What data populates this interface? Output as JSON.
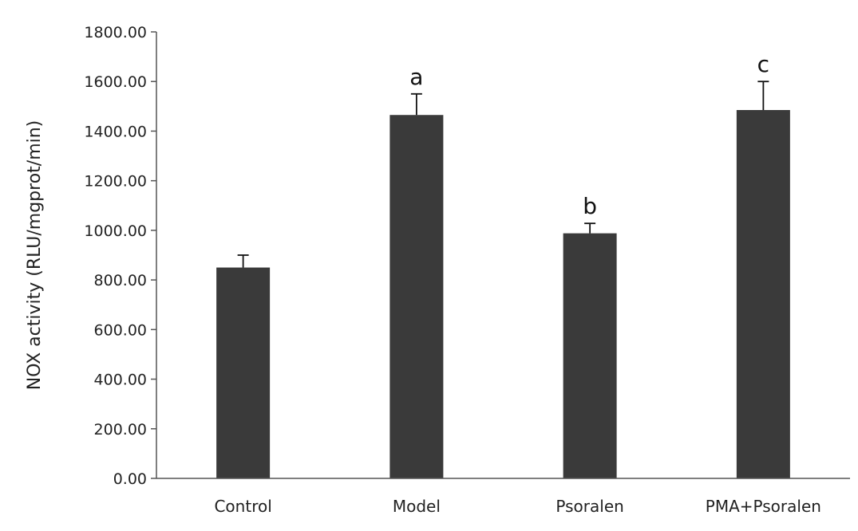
{
  "chart_data": {
    "type": "bar",
    "title": "",
    "xlabel": "",
    "ylabel": "NOX activity (RLU/mgprot/min)",
    "ylim": [
      0,
      1800
    ],
    "yticks": [
      "0.00",
      "200.00",
      "400.00",
      "600.00",
      "800.00",
      "1000.00",
      "1200.00",
      "1400.00",
      "1600.00",
      "1800.00"
    ],
    "ytick_values": [
      0,
      200,
      400,
      600,
      800,
      1000,
      1200,
      1400,
      1600,
      1800
    ],
    "categories": [
      "Control",
      "Model",
      "Psoralen",
      "PMA+Psoralen"
    ],
    "values": [
      850,
      1465,
      988,
      1485
    ],
    "errors": [
      50,
      85,
      40,
      115
    ],
    "annotations": [
      "",
      "a",
      "b",
      "c"
    ],
    "bar_color": "#3a3a3a",
    "grid": false,
    "legend": "none"
  }
}
